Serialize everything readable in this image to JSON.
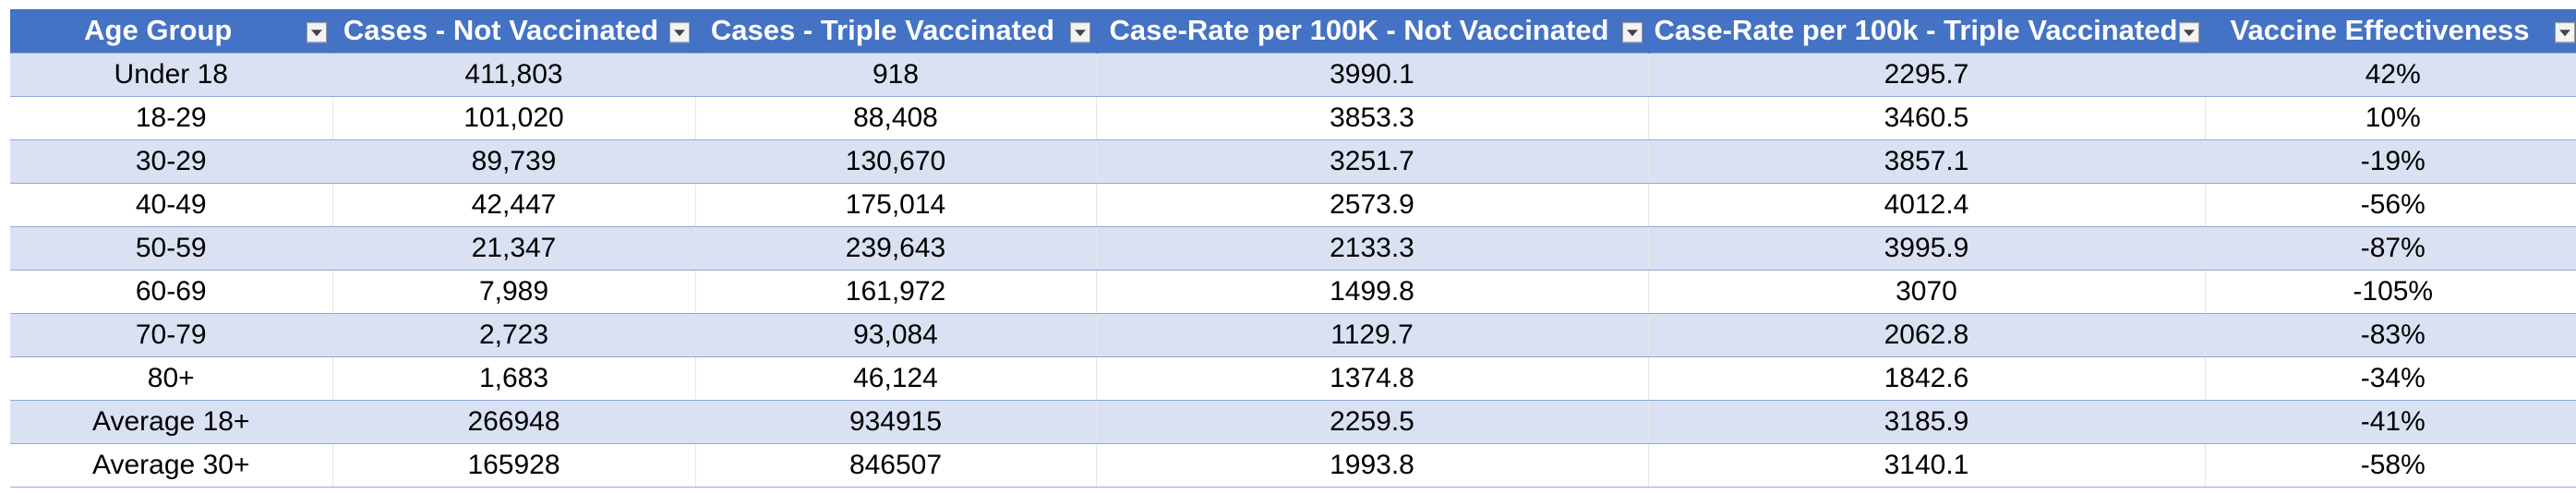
{
  "table": {
    "headers": [
      "Age Group",
      "Cases - Not Vaccinated",
      "Cases - Triple Vaccinated",
      "Case-Rate per 100K - Not Vaccinated",
      "Case-Rate per 100k - Triple Vaccinated",
      "Vaccine Effectiveness"
    ],
    "rows": [
      [
        "Under 18",
        "411,803",
        "918",
        "3990.1",
        "2295.7",
        "42%"
      ],
      [
        "18-29",
        "101,020",
        "88,408",
        "3853.3",
        "3460.5",
        "10%"
      ],
      [
        "30-29",
        "89,739",
        "130,670",
        "3251.7",
        "3857.1",
        "-19%"
      ],
      [
        "40-49",
        "42,447",
        "175,014",
        "2573.9",
        "4012.4",
        "-56%"
      ],
      [
        "50-59",
        "21,347",
        "239,643",
        "2133.3",
        "3995.9",
        "-87%"
      ],
      [
        "60-69",
        "7,989",
        "161,972",
        "1499.8",
        "3070",
        "-105%"
      ],
      [
        "70-79",
        "2,723",
        "93,084",
        "1129.7",
        "2062.8",
        "-83%"
      ],
      [
        "80+",
        "1,683",
        "46,124",
        "1374.8",
        "1842.6",
        "-34%"
      ],
      [
        "Average 18+",
        "266948",
        "934915",
        "2259.5",
        "3185.9",
        "-41%"
      ],
      [
        "Average 30+",
        "165928",
        "846507",
        "1993.8",
        "3140.1",
        "-58%"
      ]
    ]
  },
  "colors": {
    "header_bg": "#4472c4",
    "header_text": "#ffffff",
    "band_row": "#d9e1f2",
    "plain_row": "#ffffff",
    "row_border": "#8eaadb"
  },
  "icons": {
    "filter": "filter-dropdown-icon"
  }
}
